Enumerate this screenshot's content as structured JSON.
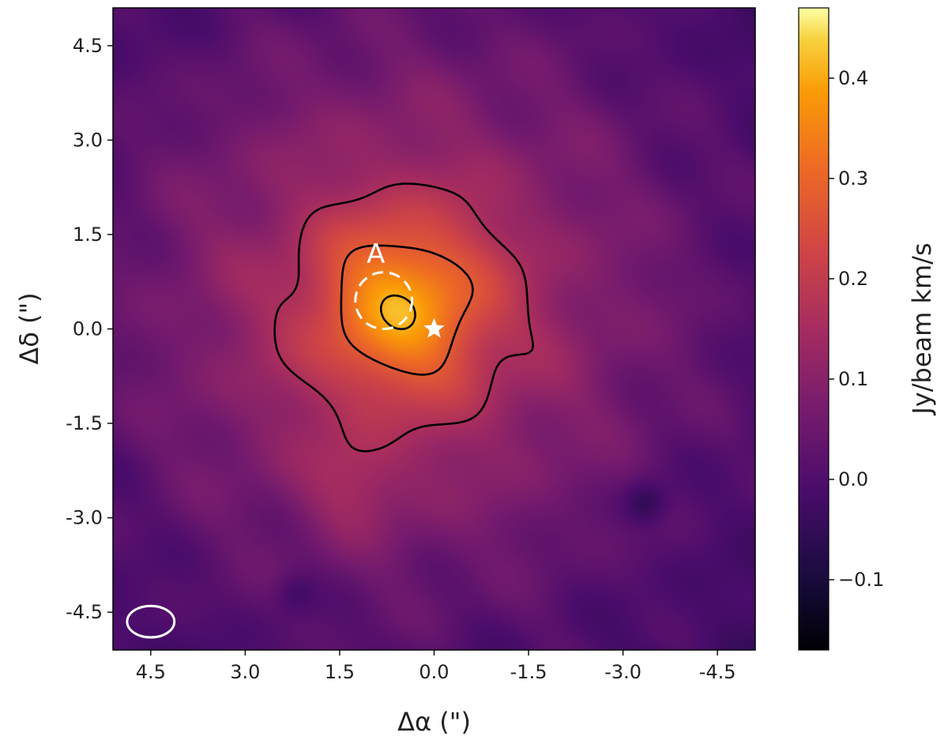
{
  "chart_data": {
    "type": "heatmap",
    "title": "",
    "xlabel": "Δα (\")",
    "ylabel": "Δδ (\")",
    "xlim": [
      5.1,
      -5.1
    ],
    "ylim": [
      -5.1,
      5.1
    ],
    "x_ticks": [
      4.5,
      3.0,
      1.5,
      0.0,
      -1.5,
      -3.0,
      -4.5
    ],
    "x_tick_labels": [
      "4.5",
      "3.0",
      "1.5",
      "0.0",
      "-1.5",
      "-3.0",
      "-4.5"
    ],
    "y_ticks": [
      4.5,
      3.0,
      1.5,
      0.0,
      -1.5,
      -3.0,
      -4.5
    ],
    "y_tick_labels": [
      "4.5",
      "3.0",
      "1.5",
      "0.0",
      "-1.5",
      "-3.0",
      "-4.5"
    ],
    "grid": false,
    "colormap": "inferno",
    "colorbar": {
      "label": "Jy/beam km/s",
      "range": [
        -0.17,
        0.47
      ],
      "ticks": [
        0.4,
        0.3,
        0.2,
        0.1,
        0.0,
        -0.1
      ],
      "tick_labels": [
        "0.4",
        "0.3",
        "0.2",
        "0.1",
        "0.0",
        "−0.1"
      ]
    },
    "emission_peak": {
      "x": 0.5,
      "y": 0.35,
      "value": 0.46
    },
    "emission_extent_arcsec": 3.2,
    "contour_levels_fraction_of_peak": [
      0.35,
      0.6,
      0.88
    ],
    "contour_color": "#000000",
    "star_marker": {
      "x": 0.0,
      "y": 0.0,
      "color": "#ffffff"
    },
    "region_A": {
      "label": "A",
      "center": [
        0.8,
        0.45
      ],
      "radius": 0.45,
      "style": "dashed",
      "color": "#ffffff"
    },
    "beam": {
      "center": [
        4.5,
        -4.65
      ],
      "major": 0.75,
      "minor": 0.5,
      "color": "#ffffff"
    }
  }
}
